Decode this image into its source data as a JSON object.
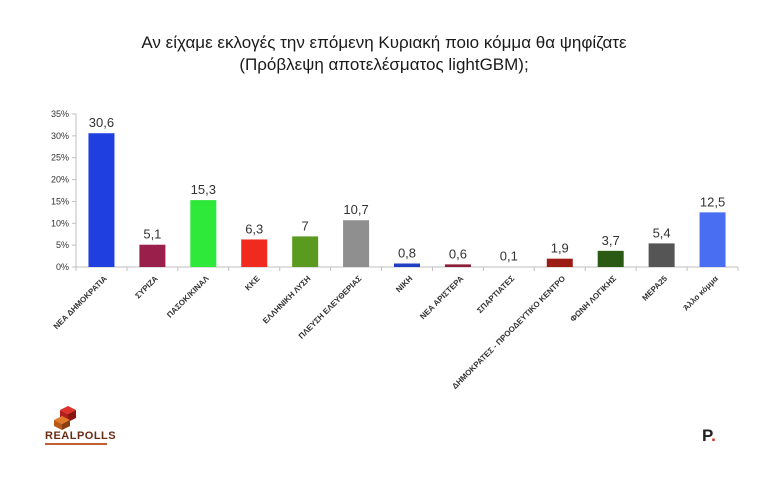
{
  "header": {
    "title_line1": "Αν είχαμε εκλογές την επόμενη Κυριακή ποιο κόμμα θα ψηφίζατε",
    "title_line2": "(Πρόβλεψη αποτελέσματος lightGBM);"
  },
  "logo": {
    "text": "REALPOLLS"
  },
  "brand": {
    "letter": "P",
    "dot": "."
  },
  "chart_data": {
    "type": "bar",
    "title": "Αν είχαμε εκλογές την επόμενη Κυριακή ποιο κόμμα θα ψηφίζατε (Πρόβλεψη αποτελέσματος lightGBM);",
    "xlabel": "",
    "ylabel": "",
    "ylim": [
      0,
      35
    ],
    "yticks": [
      "0%",
      "5%",
      "10%",
      "15%",
      "20%",
      "25%",
      "30%",
      "35%"
    ],
    "grid": false,
    "categories": [
      "ΝΕΑ ΔΗΜΟΚΡΑΤΙΑ",
      "ΣΥΡΙΖΑ",
      "ΠΑΣΟΚ/ΚΙΝΑΛ",
      "ΚΚΕ",
      "ΕΛΛΗΝΙΚΗ ΛΥΣΗ",
      "ΠΛΕΥΣΗ ΕΛΕΥΘΕΡΙΑΣ",
      "ΝΙΚΗ",
      "ΝΕΑ ΑΡΙΣΤΕΡΑ",
      "ΣΠΑΡΤΙΑΤΕΣ",
      "ΔΗΜΟΚΡΑΤΕΣ - ΠΡΟΟΔΕΥΤΙΚΟ ΚΕΝΤΡΟ",
      "ΦΩΝΗ ΛΟΓΙΚΗΣ",
      "ΜΕΡΑ25",
      "Άλλο κόμμα"
    ],
    "values": [
      30.6,
      5.1,
      15.3,
      6.3,
      7,
      10.7,
      0.8,
      0.6,
      0.1,
      1.9,
      3.7,
      5.4,
      12.5
    ],
    "labels": [
      "30,6",
      "5,1",
      "15,3",
      "6,3",
      "7",
      "10,7",
      "0,8",
      "0,6",
      "0,1",
      "1,9",
      "3,7",
      "5,4",
      "12,5"
    ],
    "colors": [
      "#1f3fe0",
      "#9a1f4a",
      "#2ee83a",
      "#f02a1e",
      "#5a9a1e",
      "#8f8f8f",
      "#1f3ec4",
      "#8c1e36",
      "#c8c8c8",
      "#9a1c12",
      "#2b5a14",
      "#555555",
      "#4a6ef2"
    ]
  }
}
